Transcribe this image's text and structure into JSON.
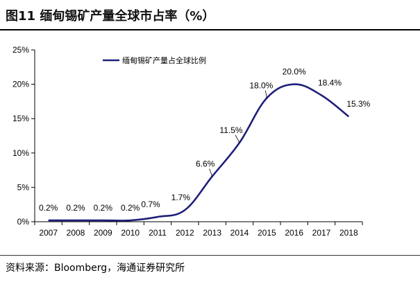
{
  "title": "图11 缅甸锡矿产量全球市占率（%）",
  "source": "资料来源：Bloomberg，海通证券研究所",
  "chart_data": {
    "type": "line",
    "title": "图11 缅甸锡矿产量全球市占率（%）",
    "categories": [
      "2007",
      "2008",
      "2009",
      "2010",
      "2011",
      "2012",
      "2013",
      "2014",
      "2015",
      "2016",
      "2017",
      "2018"
    ],
    "series": [
      {
        "name": "缅甸锡矿产量占全球比例",
        "values": [
          0.2,
          0.2,
          0.2,
          0.2,
          0.7,
          1.7,
          6.6,
          11.5,
          18.0,
          20.0,
          18.4,
          15.3
        ],
        "labels": [
          "0.2%",
          "0.2%",
          "0.2%",
          "0.2%",
          "0.7%",
          "1.7%",
          "6.6%",
          "11.5%",
          "18.0%",
          "20.0%",
          "18.4%",
          "15.3%"
        ],
        "color": "#1f1f7a"
      }
    ],
    "ylim": [
      0,
      25
    ],
    "yticks": [
      0,
      5,
      10,
      15,
      20,
      25
    ],
    "ytick_labels": [
      "0%",
      "5%",
      "10%",
      "15%",
      "20%",
      "25%"
    ],
    "grid": false,
    "legend": "top-left",
    "smooth": true
  }
}
